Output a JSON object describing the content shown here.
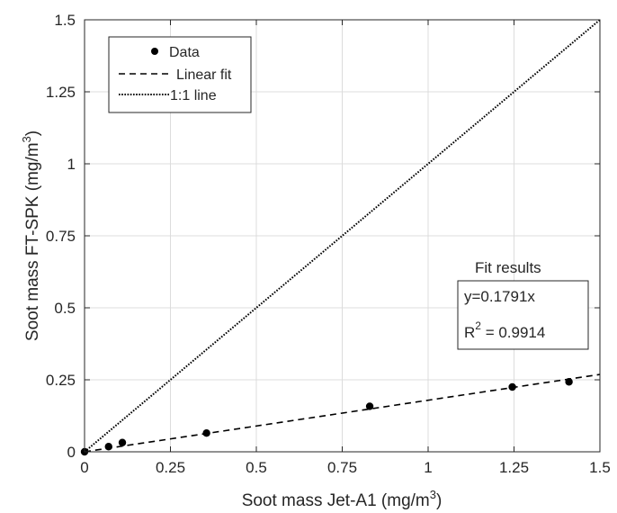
{
  "chart_data": {
    "type": "scatter",
    "xlabel": "Soot mass Jet-A1",
    "ylabel": "Soot mass FT-SPK",
    "xlabel_unit": "(mg/m",
    "ylabel_unit": "(mg/m",
    "unit_exponent": "3",
    "unit_close": ")",
    "xlim": [
      0,
      1.5
    ],
    "ylim": [
      0,
      1.5
    ],
    "xticks": [
      0,
      0.25,
      0.5,
      0.75,
      1,
      1.25,
      1.5
    ],
    "yticks": [
      0,
      0.25,
      0.5,
      0.75,
      1,
      1.25,
      1.5
    ],
    "xtick_labels": [
      "0",
      "0.25",
      "0.5",
      "0.75",
      "1",
      "1.25",
      "1.5"
    ],
    "ytick_labels": [
      "0",
      "0.25",
      "0.5",
      "0.75",
      "1",
      "1.25",
      "1.5"
    ],
    "grid": true,
    "series": [
      {
        "name": "Data",
        "style": "markers",
        "x": [
          0.0,
          0.07,
          0.11,
          0.355,
          0.83,
          1.245,
          1.41
        ],
        "y": [
          0.0,
          0.018,
          0.032,
          0.065,
          0.158,
          0.225,
          0.243
        ]
      },
      {
        "name": "Linear fit",
        "style": "dashed",
        "slope": 0.1791,
        "x_range": [
          0,
          1.5
        ]
      },
      {
        "name": "1:1 line",
        "style": "dotted",
        "slope": 1,
        "x_range": [
          0,
          1.5
        ]
      }
    ],
    "legend_placement": "top-left",
    "annotations": {
      "fit_title": "Fit results",
      "equation": "y=0.1791x",
      "r2_prefix": "R",
      "r2_exponent": "2",
      "r2_value": " = 0.9914"
    },
    "colors": {
      "markers": "#000000",
      "lines": "#000000",
      "grid": "#dcdcdc",
      "axes": "#262626"
    }
  }
}
